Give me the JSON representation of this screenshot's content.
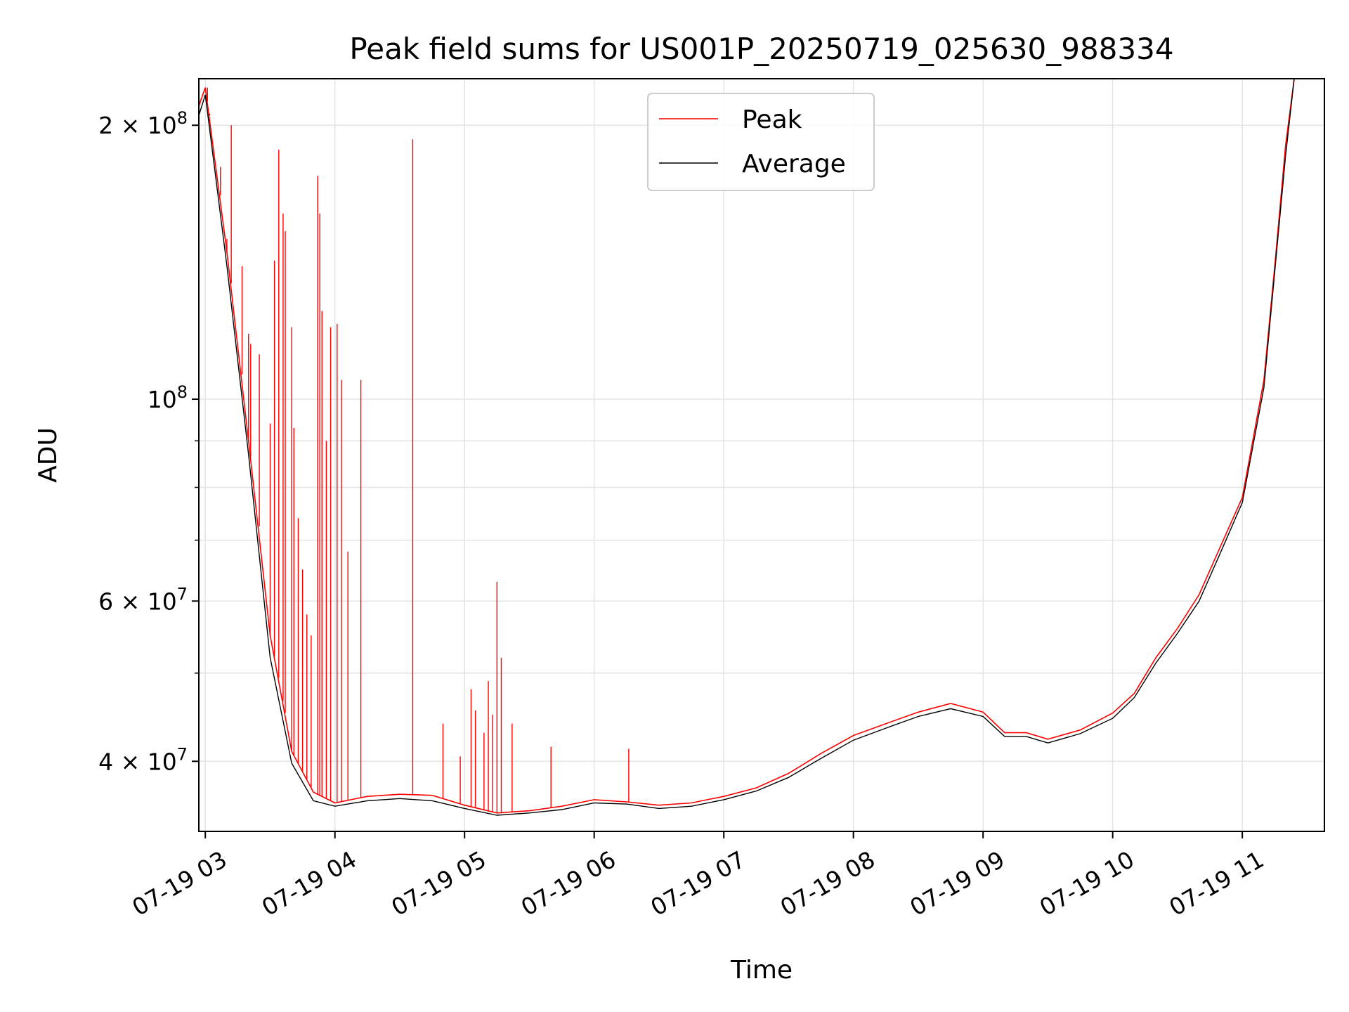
{
  "chart_data": {
    "type": "line",
    "title": "Peak field sums for US001P_20250719_025630_988334",
    "xlabel": "Time",
    "ylabel": "ADU",
    "yscale": "log",
    "xlim": [
      "2025-07-19 02:57",
      "2025-07-19 11:38"
    ],
    "ylim": [
      33500000,
      225000000
    ],
    "grid": true,
    "legend_position": "top-center",
    "x_ticks": [
      "07-19 03",
      "07-19 04",
      "07-19 05",
      "07-19 06",
      "07-19 07",
      "07-19 08",
      "07-19 09",
      "07-19 10",
      "07-19 11"
    ],
    "y_ticks": [
      {
        "value": 40000000,
        "base": "4 × 10",
        "exp": "7"
      },
      {
        "value": 60000000,
        "base": "6 × 10",
        "exp": "7"
      },
      {
        "value": 100000000,
        "base": "10",
        "exp": "8"
      },
      {
        "value": 200000000,
        "base": "2 × 10",
        "exp": "8"
      }
    ],
    "y_minor_ticks": [
      50000000,
      70000000,
      80000000,
      90000000
    ],
    "x": [
      "02:57",
      "03:00",
      "03:10",
      "03:20",
      "03:30",
      "03:40",
      "03:50",
      "04:00",
      "04:15",
      "04:30",
      "04:45",
      "05:00",
      "05:15",
      "05:30",
      "05:45",
      "06:00",
      "06:15",
      "06:30",
      "06:45",
      "07:00",
      "07:15",
      "07:30",
      "07:45",
      "08:00",
      "08:15",
      "08:30",
      "08:45",
      "09:00",
      "09:10",
      "09:20",
      "09:30",
      "09:45",
      "10:00",
      "10:10",
      "10:20",
      "10:30",
      "10:40",
      "10:50",
      "11:00",
      "11:10",
      "11:15",
      "11:20",
      "11:24"
    ],
    "series": [
      {
        "name": "Peak",
        "color": "#ff0000",
        "values": [
          210000000,
          220000000,
          145000000,
          90000000,
          55000000,
          41000000,
          37000000,
          36000000,
          36600000,
          36800000,
          36700000,
          35800000,
          35100000,
          35300000,
          35700000,
          36300000,
          36100000,
          35800000,
          36000000,
          36600000,
          37400000,
          38800000,
          40800000,
          42700000,
          44000000,
          45300000,
          46300000,
          45300000,
          43000000,
          43000000,
          42300000,
          43300000,
          45200000,
          47500000,
          52000000,
          56000000,
          61000000,
          69000000,
          78000000,
          105000000,
          140000000,
          190000000,
          225000000
        ],
        "spikes": [
          {
            "x": "03:01",
            "y": 220000000
          },
          {
            "x": "03:02",
            "y": 206000000
          },
          {
            "x": "03:04",
            "y": 190000000
          },
          {
            "x": "03:07",
            "y": 180000000
          },
          {
            "x": "03:10",
            "y": 150000000
          },
          {
            "x": "03:12",
            "y": 200000000
          },
          {
            "x": "03:17",
            "y": 140000000
          },
          {
            "x": "03:20",
            "y": 118000000
          },
          {
            "x": "03:21",
            "y": 115000000
          },
          {
            "x": "03:25",
            "y": 112000000
          },
          {
            "x": "03:30",
            "y": 94000000
          },
          {
            "x": "03:32",
            "y": 142000000
          },
          {
            "x": "03:34",
            "y": 188000000
          },
          {
            "x": "03:36",
            "y": 160000000
          },
          {
            "x": "03:37",
            "y": 153000000
          },
          {
            "x": "03:40",
            "y": 120000000
          },
          {
            "x": "03:41",
            "y": 93000000
          },
          {
            "x": "03:43",
            "y": 74000000
          },
          {
            "x": "03:45",
            "y": 65000000
          },
          {
            "x": "03:47",
            "y": 58000000
          },
          {
            "x": "03:49",
            "y": 55000000
          },
          {
            "x": "03:52",
            "y": 176000000
          },
          {
            "x": "03:53",
            "y": 160000000
          },
          {
            "x": "03:54",
            "y": 125000000
          },
          {
            "x": "03:56",
            "y": 90000000
          },
          {
            "x": "03:58",
            "y": 120000000
          },
          {
            "x": "04:01",
            "y": 121000000
          },
          {
            "x": "04:03",
            "y": 105000000
          },
          {
            "x": "04:06",
            "y": 68000000
          },
          {
            "x": "04:12",
            "y": 105000000
          },
          {
            "x": "04:36",
            "y": 193000000
          },
          {
            "x": "04:50",
            "y": 44000000
          },
          {
            "x": "04:58",
            "y": 40500000
          },
          {
            "x": "05:03",
            "y": 48000000
          },
          {
            "x": "05:05",
            "y": 45500000
          },
          {
            "x": "05:09",
            "y": 43000000
          },
          {
            "x": "05:11",
            "y": 49000000
          },
          {
            "x": "05:13",
            "y": 45000000
          },
          {
            "x": "05:15",
            "y": 63000000
          },
          {
            "x": "05:17",
            "y": 52000000
          },
          {
            "x": "05:22",
            "y": 44000000
          },
          {
            "x": "05:40",
            "y": 41500000
          },
          {
            "x": "06:16",
            "y": 41300000
          }
        ]
      },
      {
        "name": "Average",
        "color": "#000000",
        "values": [
          205000000,
          216000000,
          140000000,
          87000000,
          52000000,
          39800000,
          36200000,
          35700000,
          36200000,
          36400000,
          36200000,
          35500000,
          34900000,
          35100000,
          35400000,
          36000000,
          35900000,
          35500000,
          35700000,
          36300000,
          37100000,
          38400000,
          40300000,
          42200000,
          43500000,
          44800000,
          45700000,
          44800000,
          42600000,
          42600000,
          41900000,
          42900000,
          44600000,
          47000000,
          51300000,
          55300000,
          60000000,
          67900000,
          77000000,
          103000000,
          138000000,
          185000000,
          225000000
        ]
      }
    ]
  }
}
